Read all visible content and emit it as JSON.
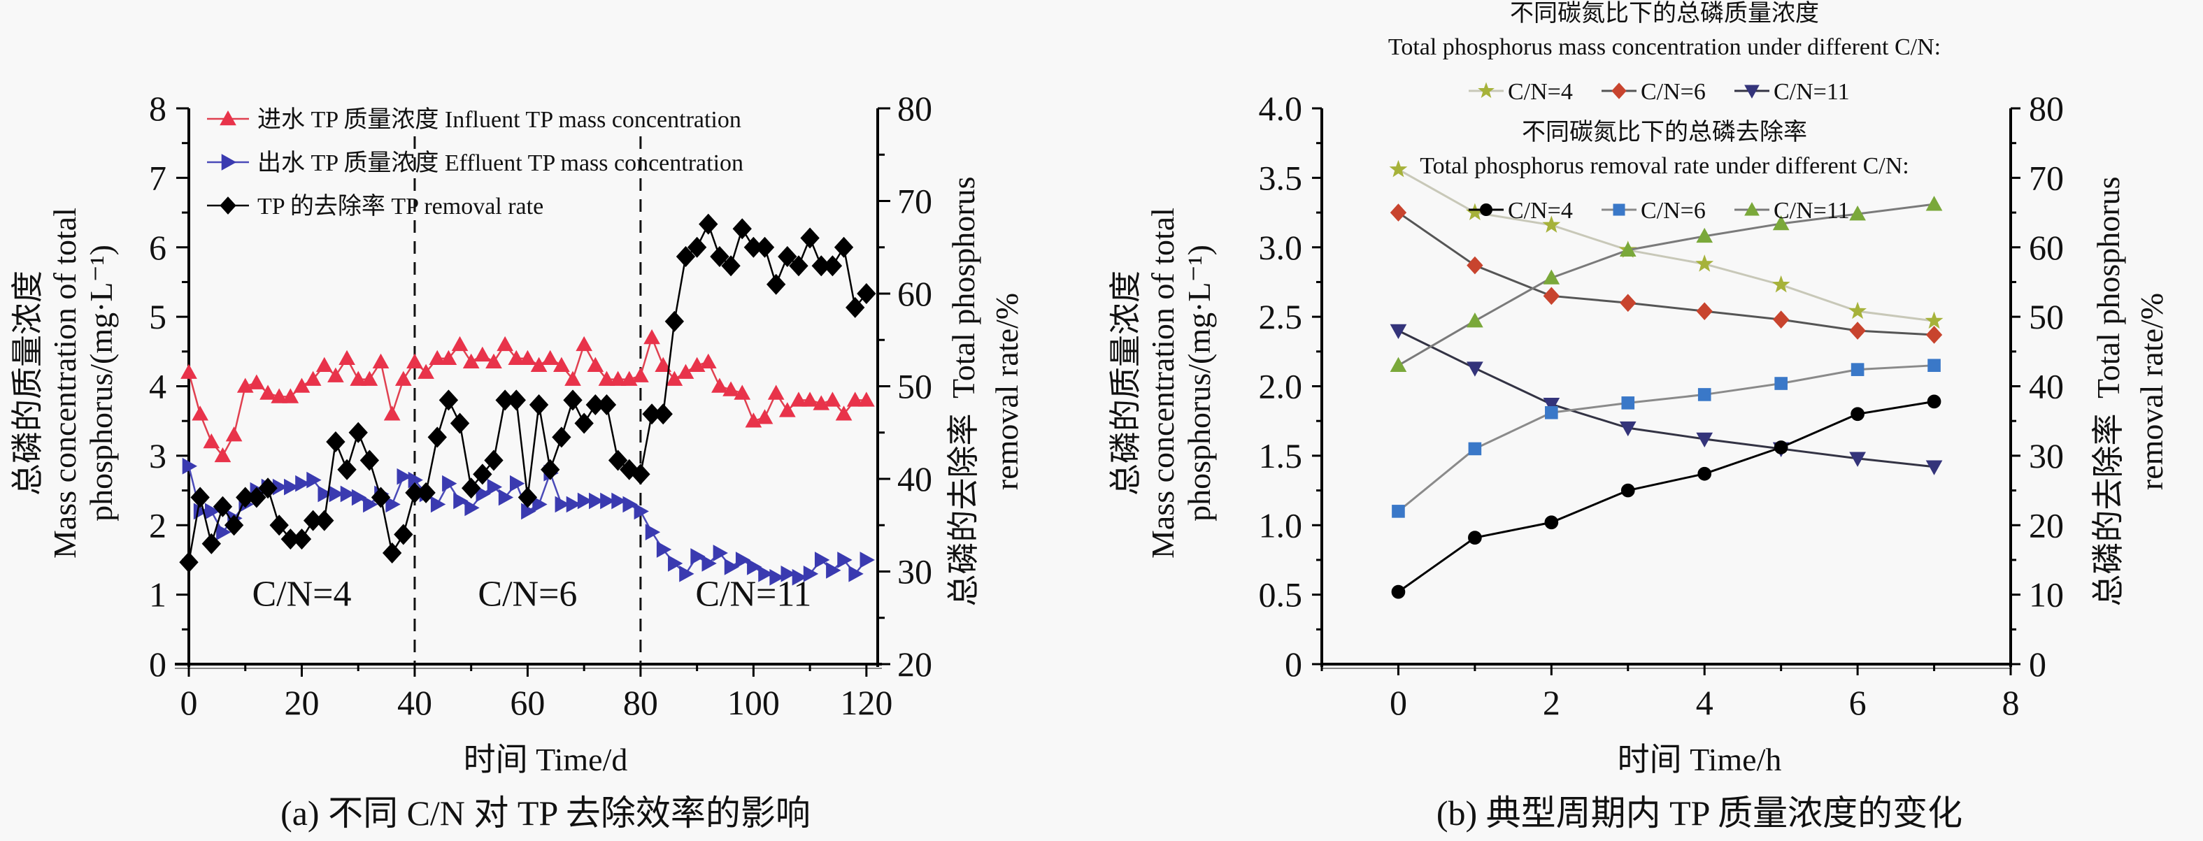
{
  "chart_data": [
    {
      "id": "a",
      "type": "line",
      "caption": "(a) 不同 C/N 对 TP 去除效率的影响",
      "xlabel": "时间 Time/d",
      "ylabel_cn": "总磷的质量浓度",
      "ylabel_en1": "Mass concentration of total",
      "ylabel_en2": "phosphorus/(mg·L⁻¹)",
      "y2label_cn": "总磷的去除率",
      "y2label_en1": "Total phosphorus",
      "y2label_en2": "removal rate/%",
      "xlim": [
        0,
        122
      ],
      "ylim": [
        0,
        8
      ],
      "y2lim": [
        20,
        80
      ],
      "xticks": [
        0,
        20,
        40,
        60,
        80,
        100,
        120
      ],
      "yticks": [
        0,
        1,
        2,
        3,
        4,
        5,
        6,
        7,
        8
      ],
      "y2ticks": [
        20,
        30,
        40,
        50,
        60,
        70,
        80
      ],
      "dividers": [
        40,
        80
      ],
      "regions": [
        {
          "label": "C/N=4",
          "x": 20
        },
        {
          "label": "C/N=6",
          "x": 60
        },
        {
          "label": "C/N=11",
          "x": 100
        }
      ],
      "legend_position": "top-left",
      "series": [
        {
          "name": "进水 TP 质量浓度 Influent TP mass concentration",
          "axis": "left",
          "marker": "triangle-up",
          "color": "#e8334a",
          "x": [
            0,
            2,
            4,
            6,
            8,
            10,
            12,
            14,
            16,
            18,
            20,
            22,
            24,
            26,
            28,
            30,
            32,
            34,
            36,
            38,
            40,
            42,
            44,
            46,
            48,
            50,
            52,
            54,
            56,
            58,
            60,
            62,
            64,
            66,
            68,
            70,
            72,
            74,
            76,
            78,
            80,
            82,
            84,
            86,
            88,
            90,
            92,
            94,
            96,
            98,
            100,
            102,
            104,
            106,
            108,
            110,
            112,
            114,
            116,
            118,
            120
          ],
          "values": [
            4.2,
            3.6,
            3.2,
            3.0,
            3.3,
            4.0,
            4.05,
            3.9,
            3.85,
            3.85,
            4.0,
            4.1,
            4.3,
            4.15,
            4.4,
            4.1,
            4.1,
            4.35,
            3.6,
            4.1,
            4.35,
            4.2,
            4.4,
            4.4,
            4.6,
            4.35,
            4.45,
            4.35,
            4.6,
            4.4,
            4.4,
            4.3,
            4.4,
            4.3,
            4.1,
            4.6,
            4.3,
            4.1,
            4.1,
            4.1,
            4.15,
            4.7,
            4.3,
            4.1,
            4.2,
            4.3,
            4.35,
            4.0,
            3.95,
            3.9,
            3.5,
            3.55,
            3.9,
            3.65,
            3.8,
            3.8,
            3.75,
            3.8,
            3.6,
            3.8,
            3.8
          ]
        },
        {
          "name": "出水 TP 质量浓度 Effluent TP mass concentration",
          "axis": "left",
          "marker": "triangle-right",
          "color": "#3a3ab0",
          "x": [
            0,
            2,
            4,
            6,
            8,
            10,
            12,
            14,
            16,
            18,
            20,
            22,
            24,
            26,
            28,
            30,
            32,
            34,
            36,
            38,
            40,
            42,
            44,
            46,
            48,
            50,
            52,
            54,
            56,
            58,
            60,
            62,
            64,
            66,
            68,
            70,
            72,
            74,
            76,
            78,
            80,
            82,
            84,
            86,
            88,
            90,
            92,
            94,
            96,
            98,
            100,
            102,
            104,
            106,
            108,
            110,
            112,
            114,
            116,
            118,
            120
          ],
          "values": [
            2.85,
            2.2,
            2.2,
            1.9,
            2.1,
            2.3,
            2.5,
            2.55,
            2.55,
            2.55,
            2.6,
            2.65,
            2.45,
            2.45,
            2.45,
            2.4,
            2.3,
            2.45,
            2.3,
            2.7,
            2.65,
            2.45,
            2.3,
            2.6,
            2.35,
            2.25,
            2.45,
            2.55,
            2.4,
            2.6,
            2.2,
            2.3,
            2.75,
            2.3,
            2.3,
            2.35,
            2.35,
            2.35,
            2.35,
            2.3,
            2.2,
            1.9,
            1.65,
            1.45,
            1.3,
            1.55,
            1.45,
            1.6,
            1.4,
            1.5,
            1.4,
            1.3,
            1.25,
            1.3,
            1.25,
            1.3,
            1.5,
            1.35,
            1.5,
            1.3,
            1.5
          ]
        },
        {
          "name": "TP 的去除率 TP removal rate",
          "axis": "right",
          "marker": "diamond",
          "color": "#000000",
          "x": [
            0,
            2,
            4,
            6,
            8,
            10,
            12,
            14,
            16,
            18,
            20,
            22,
            24,
            26,
            28,
            30,
            32,
            34,
            36,
            38,
            40,
            42,
            44,
            46,
            48,
            50,
            52,
            54,
            56,
            58,
            60,
            62,
            64,
            66,
            68,
            70,
            72,
            74,
            76,
            78,
            80,
            82,
            84,
            86,
            88,
            90,
            92,
            94,
            96,
            98,
            100,
            102,
            104,
            106,
            108,
            110,
            112,
            114,
            116,
            118,
            120
          ],
          "values": [
            31,
            38,
            33,
            37,
            35,
            38,
            38,
            39,
            35,
            33.5,
            33.5,
            35.5,
            35.5,
            44,
            41,
            45,
            42,
            38,
            32,
            34,
            38.5,
            38.5,
            44.5,
            48.5,
            46,
            39,
            40.5,
            42,
            48.5,
            48.5,
            38,
            48,
            41,
            44.5,
            48.5,
            46,
            48,
            48,
            42,
            41,
            40.5,
            47,
            47,
            57,
            64,
            65,
            67.5,
            64,
            63,
            67,
            65,
            65,
            61,
            64,
            63,
            66,
            63,
            63,
            65,
            58.5,
            60
          ]
        }
      ]
    },
    {
      "id": "b",
      "type": "line",
      "caption": "(b) 典型周期内 TP 质量浓度的变化",
      "xlabel": "时间 Time/h",
      "ylabel_cn": "总磷的质量浓度",
      "ylabel_en1": "Mass concentration of total",
      "ylabel_en2": "phosphorus/(mg·L⁻¹)",
      "y2label_cn": "总磷的去除率",
      "y2label_en1": "Total phosphorus",
      "y2label_en2": "removal rate/%",
      "xlim": [
        -1,
        8
      ],
      "ylim": [
        0,
        4.0
      ],
      "y2lim": [
        0,
        80
      ],
      "xticks": [
        0,
        2,
        4,
        6,
        8
      ],
      "yticks": [
        "0",
        "0.5",
        "1.0",
        "1.5",
        "2.0",
        "2.5",
        "3.0",
        "3.5",
        "4.0"
      ],
      "y2ticks": [
        0,
        10,
        20,
        30,
        40,
        50,
        60,
        70,
        80
      ],
      "legend_position": "top",
      "legend_groups": [
        {
          "title_cn": "不同碳氮比下的总磷质量浓度",
          "title_en": "Total phosphorus mass concentration under different C/N:",
          "entries": [
            "C/N=4",
            "C/N=6",
            "C/N=11"
          ]
        },
        {
          "title_cn": "不同碳氮比下的总磷去除率",
          "title_en": "Total phosphorus removal rate under different C/N:",
          "entries": [
            "C/N=4",
            "C/N=6",
            "C/N=11"
          ]
        }
      ],
      "x": [
        0,
        1,
        2,
        3,
        4,
        5,
        6,
        7
      ],
      "series": [
        {
          "name": "TP C/N=4",
          "group": 0,
          "axis": "left",
          "marker": "star",
          "color": "#a6b23a",
          "line": "#c8c8b8",
          "values": [
            3.56,
            3.25,
            3.16,
            2.98,
            2.88,
            2.73,
            2.54,
            2.47
          ]
        },
        {
          "name": "TP C/N=6",
          "group": 0,
          "axis": "left",
          "marker": "diamond",
          "color": "#c8442e",
          "line": "#555555",
          "values": [
            3.25,
            2.87,
            2.65,
            2.6,
            2.54,
            2.48,
            2.4,
            2.37
          ]
        },
        {
          "name": "TP C/N=11",
          "group": 0,
          "axis": "left",
          "marker": "triangle-down",
          "color": "#34347a",
          "line": "#333344",
          "values": [
            2.4,
            2.13,
            1.87,
            1.7,
            1.62,
            1.55,
            1.48,
            1.42
          ]
        },
        {
          "name": "Removal C/N=4",
          "group": 1,
          "axis": "right",
          "marker": "circle",
          "color": "#000000",
          "line": "#000000",
          "values": [
            10.4,
            18.2,
            20.4,
            25.0,
            27.4,
            31.2,
            36.0,
            37.8
          ]
        },
        {
          "name": "Removal C/N=6",
          "group": 1,
          "axis": "right",
          "marker": "square",
          "color": "#3a78c8",
          "line": "#8a8a8a",
          "values": [
            22.0,
            31.0,
            36.2,
            37.6,
            38.8,
            40.4,
            42.4,
            43.0
          ]
        },
        {
          "name": "Removal C/N=11",
          "group": 1,
          "axis": "right",
          "marker": "triangle-up",
          "color": "#7aa83a",
          "line": "#7a7a7a",
          "values": [
            43.0,
            49.4,
            55.6,
            59.6,
            61.6,
            63.4,
            64.8,
            66.2
          ]
        }
      ]
    }
  ]
}
